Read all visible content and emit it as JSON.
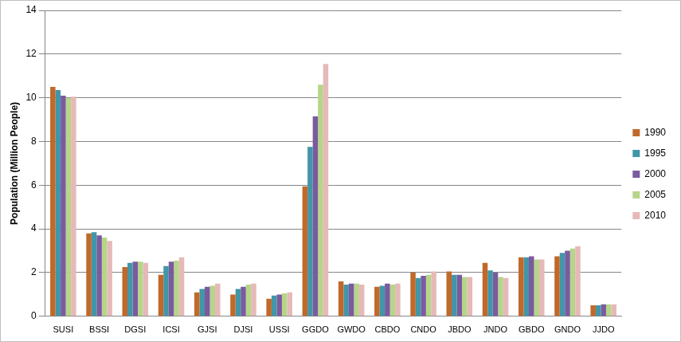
{
  "chart_data": {
    "type": "bar",
    "y_label": "Population (Million People)",
    "categories": [
      "SUSI",
      "BSSI",
      "DGSI",
      "ICSI",
      "GJSI",
      "DJSI",
      "USSI",
      "GGDO",
      "GWDO",
      "CBDO",
      "CNDO",
      "JBDO",
      "JNDO",
      "GBDO",
      "GNDO",
      "JJDO"
    ],
    "series": [
      {
        "name": "1990",
        "color": "#c0692a",
        "values": [
          10.5,
          3.8,
          2.25,
          1.9,
          1.1,
          1.0,
          0.8,
          5.95,
          1.6,
          1.35,
          2.0,
          2.05,
          2.45,
          2.7,
          2.75,
          0.5
        ]
      },
      {
        "name": "1995",
        "color": "#4196a8",
        "values": [
          10.35,
          3.85,
          2.45,
          2.3,
          1.25,
          1.25,
          0.95,
          7.75,
          1.45,
          1.4,
          1.75,
          1.9,
          2.1,
          2.7,
          2.9,
          0.5
        ]
      },
      {
        "name": "2000",
        "color": "#7b5a9e",
        "values": [
          10.1,
          3.7,
          2.5,
          2.5,
          1.35,
          1.35,
          1.0,
          9.15,
          1.5,
          1.5,
          1.85,
          1.9,
          2.0,
          2.75,
          3.0,
          0.55
        ]
      },
      {
        "name": "2005",
        "color": "#b6d58a",
        "values": [
          10.0,
          3.6,
          2.5,
          2.55,
          1.4,
          1.45,
          1.05,
          10.6,
          1.5,
          1.45,
          1.9,
          1.8,
          1.8,
          2.6,
          3.1,
          0.55
        ]
      },
      {
        "name": "2010",
        "color": "#e6b9b8",
        "values": [
          10.05,
          3.45,
          2.45,
          2.7,
          1.5,
          1.5,
          1.1,
          11.55,
          1.45,
          1.5,
          2.05,
          1.8,
          1.75,
          2.6,
          3.2,
          0.55
        ]
      }
    ],
    "ylim": [
      0,
      14
    ],
    "yticks": [
      0,
      2,
      4,
      6,
      8,
      10,
      12,
      14
    ],
    "grid": true,
    "legend": "right"
  }
}
